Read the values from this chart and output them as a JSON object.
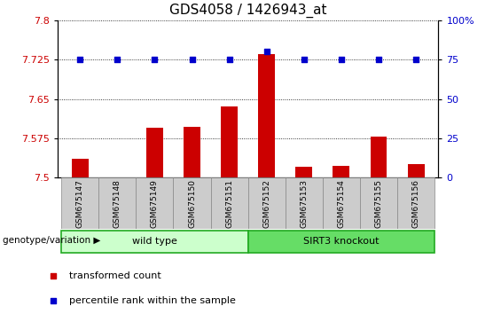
{
  "title": "GDS4058 / 1426943_at",
  "samples": [
    "GSM675147",
    "GSM675148",
    "GSM675149",
    "GSM675150",
    "GSM675151",
    "GSM675152",
    "GSM675153",
    "GSM675154",
    "GSM675155",
    "GSM675156"
  ],
  "transformed_count": [
    7.535,
    7.5,
    7.595,
    7.597,
    7.635,
    7.735,
    7.52,
    7.522,
    7.578,
    7.525
  ],
  "percentile_rank": [
    75,
    75,
    75,
    75,
    75,
    80,
    75,
    75,
    75,
    75
  ],
  "ylim_left": [
    7.5,
    7.8
  ],
  "ylim_right": [
    0,
    100
  ],
  "yticks_left": [
    7.5,
    7.575,
    7.65,
    7.725,
    7.8
  ],
  "yticks_right": [
    0,
    25,
    50,
    75,
    100
  ],
  "bar_color": "#cc0000",
  "dot_color": "#0000cc",
  "wild_type_indices": [
    0,
    1,
    2,
    3,
    4
  ],
  "knockout_indices": [
    5,
    6,
    7,
    8,
    9
  ],
  "wild_type_label": "wild type",
  "knockout_label": "SIRT3 knockout",
  "wild_type_color": "#ccffcc",
  "knockout_color": "#66dd66",
  "group_border_color": "#22aa22",
  "group_label_text": "genotype/variation",
  "legend_items": [
    {
      "label": "transformed count",
      "color": "#cc0000"
    },
    {
      "label": "percentile rank within the sample",
      "color": "#0000cc"
    }
  ],
  "title_fontsize": 11,
  "tick_label_color_left": "#cc0000",
  "tick_label_color_right": "#0000cc",
  "sample_box_color": "#cccccc",
  "sample_box_edge": "#888888"
}
